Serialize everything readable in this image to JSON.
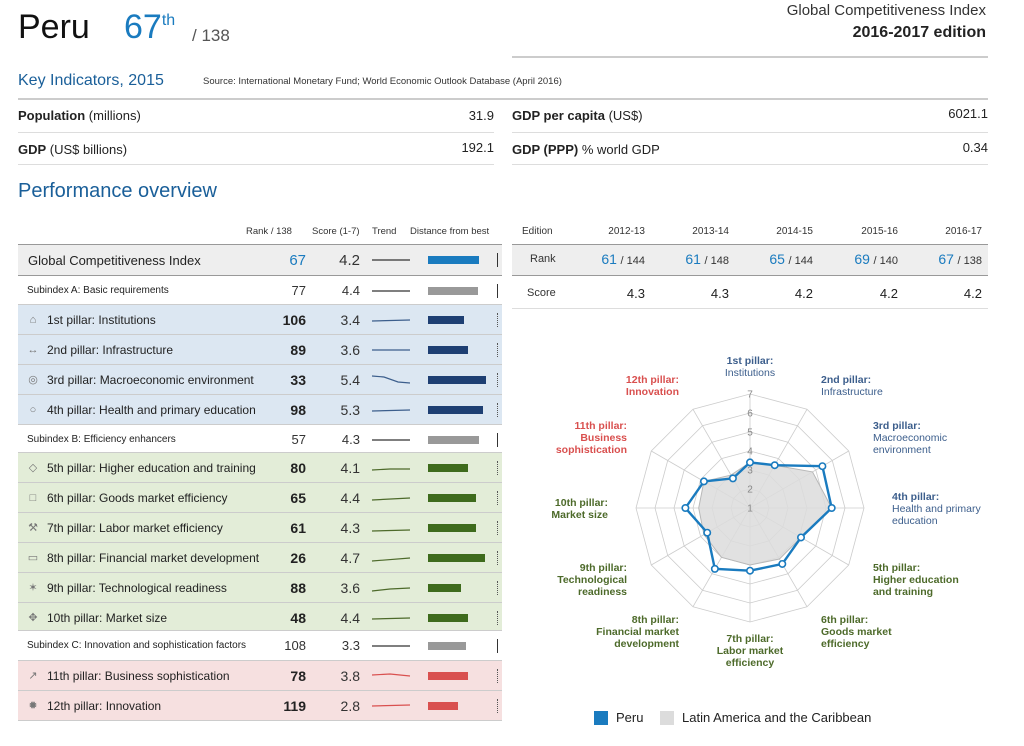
{
  "header": {
    "country": "Peru",
    "rank": "67",
    "rank_suffix": "th",
    "rank_of": "/ 138",
    "index_name": "Global Competitiveness Index",
    "edition": "2016-2017 edition"
  },
  "key_indicators": {
    "title": "Key Indicators, 2015",
    "source": "Source: International Monetary Fund; World Economic Outlook Database (April 2016)",
    "items": [
      {
        "bold": "Population",
        "rest": " (millions)",
        "value": "31.9"
      },
      {
        "bold": "GDP",
        "rest": " (US$ billions)",
        "value": "192.1"
      },
      {
        "bold": "GDP per capita",
        "rest": " (US$)",
        "value": "6021.1"
      },
      {
        "bold": "GDP (PPP)",
        "rest": " % world GDP",
        "value": "0.34"
      }
    ]
  },
  "performance": {
    "title": "Performance overview",
    "col_rank": "Rank / 138",
    "col_score": "Score (1-7)",
    "col_trend": "Trend",
    "col_dist": "Distance from best",
    "rows": [
      {
        "label": "Global Competitiveness Index",
        "rank": "67",
        "score": "4.2",
        "dist": 0.78,
        "kind": "gci"
      },
      {
        "label": "Subindex A: Basic requirements",
        "rank": "77",
        "score": "4.4",
        "dist": 0.75,
        "kind": "sub"
      },
      {
        "label": "1st pillar: Institutions",
        "rank": "106",
        "score": "3.4",
        "dist": 0.55,
        "kind": "pillar",
        "icon": "building-icon"
      },
      {
        "label": "2nd pillar: Infrastructure",
        "rank": "89",
        "score": "3.6",
        "dist": 0.6,
        "kind": "pillar",
        "icon": "railway-icon"
      },
      {
        "label": "3rd pillar: Macroeconomic environment",
        "rank": "33",
        "score": "5.4",
        "dist": 0.88,
        "kind": "pillar",
        "icon": "coins-icon"
      },
      {
        "label": "4th pillar: Health and primary education",
        "rank": "98",
        "score": "5.3",
        "dist": 0.84,
        "kind": "pillar",
        "icon": "apple-icon"
      },
      {
        "label": "Subindex B: Efficiency enhancers",
        "rank": "57",
        "score": "4.3",
        "dist": 0.78,
        "kind": "sub"
      },
      {
        "label": "5th pillar: Higher education and training",
        "rank": "80",
        "score": "4.1",
        "dist": 0.6,
        "kind": "pillar",
        "icon": "graduation-cap-icon"
      },
      {
        "label": "6th pillar: Goods market efficiency",
        "rank": "65",
        "score": "4.4",
        "dist": 0.72,
        "kind": "pillar",
        "icon": "box-icon"
      },
      {
        "label": "7th pillar: Labor market efficiency",
        "rank": "61",
        "score": "4.3",
        "dist": 0.72,
        "kind": "pillar",
        "icon": "worker-icon"
      },
      {
        "label": "8th pillar: Financial market development",
        "rank": "26",
        "score": "4.7",
        "dist": 0.86,
        "kind": "pillar",
        "icon": "bank-card-icon"
      },
      {
        "label": "9th pillar: Technological readiness",
        "rank": "88",
        "score": "3.6",
        "dist": 0.5,
        "kind": "pillar",
        "icon": "network-icon"
      },
      {
        "label": "10th pillar: Market size",
        "rank": "48",
        "score": "4.4",
        "dist": 0.6,
        "kind": "pillar",
        "icon": "arrows-icon"
      },
      {
        "label": "Subindex C: Innovation and sophistication factors",
        "rank": "108",
        "score": "3.3",
        "dist": 0.58,
        "kind": "sub"
      },
      {
        "label": "11th pillar: Business sophistication",
        "rank": "78",
        "score": "3.8",
        "dist": 0.6,
        "kind": "pillar",
        "icon": "growth-chart-icon"
      },
      {
        "label": "12th pillar: Innovation",
        "rank": "119",
        "score": "2.8",
        "dist": 0.45,
        "kind": "pillar",
        "icon": "sparkle-icon"
      }
    ]
  },
  "editions": {
    "col_edition": "Edition",
    "rank_label": "Rank",
    "score_label": "Score",
    "columns": [
      {
        "edition": "2012-13",
        "rank": "61",
        "of": "/ 144",
        "score": "4.3"
      },
      {
        "edition": "2013-14",
        "rank": "61",
        "of": "/ 148",
        "score": "4.3"
      },
      {
        "edition": "2014-15",
        "rank": "65",
        "of": "/ 144",
        "score": "4.2"
      },
      {
        "edition": "2015-16",
        "rank": "69",
        "of": "/ 140",
        "score": "4.2"
      },
      {
        "edition": "2016-17",
        "rank": "67",
        "of": "/ 138",
        "score": "4.2"
      }
    ]
  },
  "chart_data": {
    "type": "radar",
    "axes": [
      {
        "line1": "1st pillar:",
        "line2": "Institutions",
        "line3": "",
        "group": "blue"
      },
      {
        "line1": "2nd pillar:",
        "line2": "Infrastructure",
        "line3": "",
        "group": "blue"
      },
      {
        "line1": "3rd pillar:",
        "line2": "Macroeconomic",
        "line3": "environment",
        "group": "blue"
      },
      {
        "line1": "4th pillar:",
        "line2": "Health and primary",
        "line3": "education",
        "group": "blue"
      },
      {
        "line1": "5th pillar:",
        "line2": "Higher education",
        "line3": "and training",
        "group": "green"
      },
      {
        "line1": "6th pillar:",
        "line2": "Goods market",
        "line3": "efficiency",
        "group": "green"
      },
      {
        "line1": "7th pillar:",
        "line2": "Labor market",
        "line3": "efficiency",
        "group": "green"
      },
      {
        "line1": "8th pillar:",
        "line2": "Financial market",
        "line3": "development",
        "group": "green"
      },
      {
        "line1": "9th pillar:",
        "line2": "Technological",
        "line3": "readiness",
        "group": "green"
      },
      {
        "line1": "10th pillar:",
        "line2": "Market size",
        "line3": "",
        "group": "green"
      },
      {
        "line1": "11th pillar:",
        "line2": "Business",
        "line3": "sophistication",
        "group": "red"
      },
      {
        "line1": "12th pillar:",
        "line2": "Innovation",
        "line3": "",
        "group": "red"
      }
    ],
    "ticks": [
      "1",
      "2",
      "3",
      "4",
      "5",
      "6",
      "7"
    ],
    "range": [
      1,
      7
    ],
    "series": [
      {
        "name": "Peru",
        "color": "#1a7bbf",
        "values": [
          3.4,
          3.6,
          5.4,
          5.3,
          4.1,
          4.4,
          4.3,
          4.7,
          3.6,
          4.4,
          3.8,
          2.8
        ]
      },
      {
        "name": "Latin America and the Caribbean",
        "color": "#dcdcdc",
        "values": [
          3.4,
          3.6,
          4.8,
          5.3,
          4.1,
          4.1,
          4.0,
          4.0,
          3.8,
          3.7,
          3.8,
          3.0
        ]
      }
    ],
    "legend_position": "bottom"
  },
  "colors": {
    "accent": "#1a7bbf",
    "blue_group": "#3c5e8c",
    "green_group": "#4d6a2a",
    "red_group": "#d9504f",
    "blue_bg": "#dce7f2",
    "green_bg": "#e3edd8",
    "red_bg": "#f6e0e0"
  }
}
